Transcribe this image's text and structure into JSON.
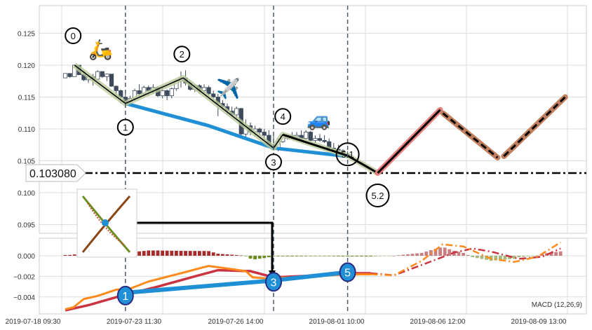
{
  "chart_data": [
    {
      "type": "candlestick",
      "panel": "price",
      "ylim": [
        0.0935,
        0.1295
      ],
      "yticks": [
        "0.095",
        "0.100",
        "0.105",
        "0.110",
        "0.115",
        "0.120",
        "0.125"
      ],
      "grid": true,
      "candles_ohlc": [
        [
          0.118,
          0.1187,
          0.118,
          0.1187
        ],
        [
          0.1187,
          0.1187,
          0.118,
          0.1182
        ],
        [
          0.1182,
          0.12,
          0.1182,
          0.12
        ],
        [
          0.12,
          0.12,
          0.1185,
          0.1185
        ],
        [
          0.1185,
          0.119,
          0.1175,
          0.1177
        ],
        [
          0.1177,
          0.1185,
          0.1172,
          0.1182
        ],
        [
          0.1182,
          0.1186,
          0.1168,
          0.1178
        ],
        [
          0.1178,
          0.1192,
          0.1176,
          0.119
        ],
        [
          0.119,
          0.119,
          0.118,
          0.1182
        ],
        [
          0.1182,
          0.1187,
          0.1175,
          0.1186
        ],
        [
          0.1186,
          0.1186,
          0.1166,
          0.1167
        ],
        [
          0.1167,
          0.1168,
          0.1153,
          0.116
        ],
        [
          0.116,
          0.1162,
          0.114,
          0.115
        ],
        [
          0.115,
          0.1155,
          0.1138,
          0.1142
        ],
        [
          0.1142,
          0.1152,
          0.1138,
          0.1148
        ],
        [
          0.1148,
          0.1163,
          0.1145,
          0.116
        ],
        [
          0.116,
          0.117,
          0.115,
          0.1155
        ],
        [
          0.1155,
          0.1168,
          0.115,
          0.1165
        ],
        [
          0.1165,
          0.1168,
          0.1152,
          0.116
        ],
        [
          0.116,
          0.117,
          0.1155,
          0.1165
        ],
        [
          0.1165,
          0.1166,
          0.115,
          0.1152
        ],
        [
          0.1152,
          0.1165,
          0.1148,
          0.116
        ],
        [
          0.116,
          0.1162,
          0.1145,
          0.1152
        ],
        [
          0.1152,
          0.1165,
          0.1148,
          0.1163
        ],
        [
          0.1163,
          0.1178,
          0.116,
          0.1175
        ],
        [
          0.1175,
          0.119,
          0.1165,
          0.118
        ],
        [
          0.118,
          0.1192,
          0.1168,
          0.1172
        ],
        [
          0.1172,
          0.1175,
          0.116,
          0.1162
        ],
        [
          0.1162,
          0.117,
          0.1158,
          0.1168
        ],
        [
          0.1168,
          0.117,
          0.1155,
          0.116
        ],
        [
          0.116,
          0.117,
          0.1155,
          0.1165
        ],
        [
          0.1165,
          0.1168,
          0.1152,
          0.1155
        ],
        [
          0.1155,
          0.116,
          0.1145,
          0.115
        ],
        [
          0.115,
          0.1155,
          0.112,
          0.114
        ],
        [
          0.114,
          0.1145,
          0.113,
          0.1135
        ],
        [
          0.1135,
          0.114,
          0.1122,
          0.1128
        ],
        [
          0.1128,
          0.1135,
          0.112,
          0.1122
        ],
        [
          0.1122,
          0.1135,
          0.1118,
          0.1132
        ],
        [
          0.1132,
          0.1133,
          0.1085,
          0.1092
        ],
        [
          0.1092,
          0.1115,
          0.1085,
          0.1105
        ],
        [
          0.1105,
          0.111,
          0.109,
          0.1095
        ],
        [
          0.1095,
          0.1105,
          0.1088,
          0.11
        ],
        [
          0.11,
          0.1102,
          0.109,
          0.1095
        ],
        [
          0.1095,
          0.11,
          0.1082,
          0.109
        ],
        [
          0.109,
          0.1098,
          0.1072,
          0.1075
        ],
        [
          0.1075,
          0.109,
          0.1068,
          0.107
        ],
        [
          0.107,
          0.1085,
          0.1065,
          0.108
        ],
        [
          0.108,
          0.1092,
          0.1078,
          0.109
        ],
        [
          0.1085,
          0.1092,
          0.1083,
          0.109
        ],
        [
          0.109,
          0.1095,
          0.1085,
          0.1088
        ],
        [
          0.1088,
          0.1095,
          0.1083,
          0.109
        ],
        [
          0.109,
          0.1098,
          0.1082,
          0.1085
        ],
        [
          0.1085,
          0.1098,
          0.1083,
          0.1095
        ],
        [
          0.1095,
          0.1097,
          0.108,
          0.1082
        ],
        [
          0.1082,
          0.109,
          0.1078,
          0.1085
        ],
        [
          0.1085,
          0.1092,
          0.108,
          0.1082
        ],
        [
          0.1082,
          0.109,
          0.1078,
          0.108
        ],
        [
          0.108,
          0.1085,
          0.1068,
          0.107
        ],
        [
          0.107,
          0.1078,
          0.1065,
          0.1068
        ],
        [
          0.1068,
          0.1075,
          0.1062,
          0.1066
        ],
        [
          0.1066,
          0.1068,
          0.1058,
          0.106
        ],
        [
          0.106,
          0.1065,
          0.1055,
          0.1058
        ]
      ],
      "wave_points": [
        {
          "label": "0",
          "bar": 2,
          "value": 0.12
        },
        {
          "label": "1",
          "bar": 13,
          "value": 0.114
        },
        {
          "label": "2",
          "bar": 25.5,
          "value": 0.118
        },
        {
          "label": "3",
          "bar": 45,
          "value": 0.107
        },
        {
          "label": "4",
          "bar": 47,
          "value": 0.1091
        },
        {
          "label": "5.1",
          "bar": 61,
          "value": 0.1058
        },
        {
          "label": "5.2",
          "bar": 67.5,
          "value": 0.10308
        }
      ],
      "trend_line_points": [
        {
          "bar": 13,
          "value": 0.114
        },
        {
          "bar": 31,
          "value": 0.1105
        },
        {
          "bar": 45,
          "value": 0.107
        },
        {
          "bar": 61,
          "value": 0.1057
        }
      ],
      "projection": [
        {
          "bar": 67.5,
          "value": 0.10308
        },
        {
          "bar": 81,
          "value": 0.113
        },
        {
          "bar": 94,
          "value": 0.1055
        },
        {
          "bar": 108,
          "value": 0.115
        }
      ],
      "price_level": {
        "value": 0.10308,
        "label": "0.103080"
      },
      "markers": [
        {
          "bar": 13
        },
        {
          "bar": 45
        },
        {
          "bar": 61
        }
      ]
    },
    {
      "type": "line",
      "panel": "macd",
      "label": "MACD (12,26,9)",
      "ylim": [
        -0.0056,
        0.0017
      ],
      "yticks": [
        "0.000",
        "−0.002",
        "−0.004"
      ],
      "macd": [
        [
          0,
          -0.0052
        ],
        [
          1.8,
          -0.005
        ],
        [
          4,
          -0.0042
        ],
        [
          7,
          -0.0039
        ],
        [
          11,
          -0.0033
        ],
        [
          14,
          -0.0032
        ],
        [
          18,
          -0.0025
        ],
        [
          21.5,
          -0.0021
        ],
        [
          25,
          -0.0017
        ],
        [
          30,
          -0.0011
        ],
        [
          31,
          -0.001
        ],
        [
          36,
          -0.0013
        ],
        [
          39,
          -0.0015
        ],
        [
          40.5,
          -0.0021
        ],
        [
          43.5,
          -0.0022
        ],
        [
          49.5,
          -0.0021
        ],
        [
          61,
          -0.0018
        ],
        [
          66,
          -0.0018
        ]
      ],
      "macd_projection": [
        [
          66,
          -0.0018
        ],
        [
          71,
          -0.0019
        ],
        [
          77,
          -0.0005
        ],
        [
          81.5,
          0.0011
        ],
        [
          86,
          0.0009
        ],
        [
          92,
          -0.0003
        ],
        [
          97,
          -0.0006
        ],
        [
          102,
          -0.0001
        ],
        [
          107,
          0.0013
        ]
      ],
      "signal": [
        [
          0,
          -0.0053
        ],
        [
          5,
          -0.0048
        ],
        [
          12,
          -0.0039
        ],
        [
          20,
          -0.003
        ],
        [
          28,
          -0.002
        ],
        [
          33,
          -0.0014
        ],
        [
          40,
          -0.0015
        ],
        [
          45,
          -0.0021
        ],
        [
          55,
          -0.0019
        ],
        [
          61,
          -0.0017
        ],
        [
          66,
          -0.0017
        ]
      ],
      "signal_projection": [
        [
          66,
          -0.0017
        ],
        [
          71,
          -0.0019
        ],
        [
          77,
          -0.0009
        ],
        [
          84,
          0.0003
        ],
        [
          88,
          0.0007
        ],
        [
          92,
          0.0004
        ],
        [
          98,
          -0.0003
        ],
        [
          103,
          -0.0001
        ],
        [
          107,
          0.0007
        ]
      ],
      "wave_points": [
        {
          "label": "1",
          "bar": 13,
          "value": -0.0036
        },
        {
          "label": "3",
          "bar": 45,
          "value": -0.0024
        },
        {
          "label": "5",
          "bar": 61,
          "value": -0.0016
        }
      ]
    }
  ],
  "x_axis": {
    "ticks": [
      "2019-07-18 09:30",
      "2019-07-23 11:30",
      "2019-07-26 14:00",
      "2019-08-01 10:00",
      "2019-08-06 12:00",
      "2019-08-09 13:00"
    ]
  },
  "icons": {
    "scooter": "🛵",
    "airplane": "✈️",
    "car": "🚙"
  },
  "colors": {
    "up": "#ffffff",
    "down": "#3d4a5c",
    "wave_glow": "#b9c99a",
    "trend": "#1f8fd6",
    "projection_up": "#e88080",
    "projection_brown": "#c08060",
    "macd": "#ff8a1a",
    "signal": "#cc3340",
    "hist_pos": "#a52a2a",
    "hist_neg": "#6b8e23"
  }
}
